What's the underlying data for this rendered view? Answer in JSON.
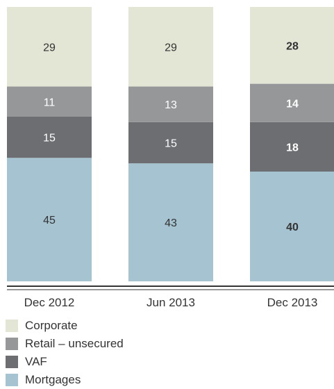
{
  "chart_data": {
    "type": "bar",
    "stacked": true,
    "categories": [
      "Dec 2012",
      "Jun 2013",
      "Dec 2013"
    ],
    "series": [
      {
        "name": "Mortgages",
        "values": [
          45,
          43,
          40
        ],
        "color": "#a5c3d1",
        "label_color": "#333333"
      },
      {
        "name": "VAF",
        "values": [
          15,
          15,
          18
        ],
        "color": "#6d6e71",
        "label_color": "#ffffff"
      },
      {
        "name": "Retail – unsecured",
        "values": [
          11,
          13,
          14
        ],
        "color": "#969799",
        "label_color": "#ffffff"
      },
      {
        "name": "Corporate",
        "values": [
          29,
          29,
          28
        ],
        "color": "#e3e5d5",
        "label_color": "#333333"
      }
    ],
    "bold_category_labels": [
      false,
      false,
      true
    ],
    "ylim": [
      0,
      100
    ],
    "legend_position": "bottom-left",
    "grid": false
  }
}
